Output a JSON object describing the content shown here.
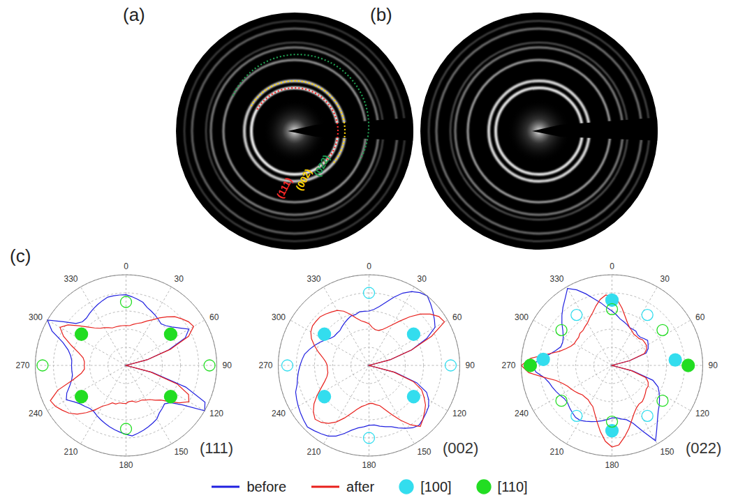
{
  "panels": {
    "a": {
      "label": "(a)",
      "arcs": [
        {
          "label": "(022)",
          "color": "#1f9e50"
        },
        {
          "label": "(002)",
          "color": "#ffd400"
        },
        {
          "label": "(111)",
          "color": "#ff2a2a"
        }
      ]
    },
    "b": {
      "label": "(b)"
    },
    "c": {
      "label": "(c)"
    }
  },
  "legend": {
    "position": "bottom",
    "items": [
      {
        "name": "before",
        "color": "#2020e0",
        "marker": "line"
      },
      {
        "name": "after",
        "color": "#e8201c",
        "marker": "line"
      },
      {
        "name": "[100]",
        "color": "#33ddee",
        "marker": "filled"
      },
      {
        "name": "[110]",
        "color": "#22dd22",
        "marker": "filled"
      }
    ]
  },
  "chart_data": [
    {
      "type": "radar",
      "title": "(111)",
      "grid": true,
      "tick_labels": "x",
      "legend": "bottom",
      "x": [
        0,
        5,
        10,
        15,
        20,
        25,
        30,
        35,
        40,
        45,
        50,
        55,
        60,
        65,
        70,
        75,
        80,
        85,
        90,
        95,
        100,
        105,
        110,
        115,
        120,
        125,
        130,
        135,
        140,
        145,
        150,
        155,
        160,
        165,
        170,
        175,
        180,
        185,
        190,
        195,
        200,
        205,
        210,
        215,
        220,
        225,
        230,
        235,
        240,
        245,
        250,
        255,
        260,
        265,
        270,
        275,
        280,
        285,
        290,
        295,
        300,
        305,
        310,
        315,
        320,
        325,
        330,
        335,
        340,
        345,
        350,
        355
      ],
      "xlim": [
        0,
        360
      ],
      "xticks": [
        0,
        30,
        60,
        90,
        120,
        150,
        180,
        210,
        240,
        270,
        300,
        330
      ],
      "ylim": [
        0,
        5
      ],
      "yticks": [
        1,
        2,
        3,
        4,
        5
      ],
      "series": [
        {
          "name": "before",
          "color": "#2020e0",
          "values": [
            3.9,
            3.8,
            3.7,
            3.6,
            3.4,
            3.3,
            3.2,
            3.1,
            3.0,
            3.1,
            3.3,
            3.6,
            4.0,
            3.6,
            2.5,
            1.2,
            0,
            0,
            0,
            0,
            0,
            1.5,
            3.5,
            4.8,
            5.0,
            3.8,
            3.2,
            3.0,
            3.1,
            3.2,
            3.4,
            3.5,
            3.6,
            3.7,
            3.8,
            3.9,
            3.8,
            3.7,
            3.6,
            3.5,
            3.4,
            3.3,
            3.2,
            3.1,
            3.1,
            3.2,
            3.3,
            3.5,
            3.8,
            3.6,
            3.3,
            3.1,
            3.0,
            3.0,
            3.0,
            3.0,
            3.1,
            3.3,
            3.7,
            4.5,
            5.0,
            4.2,
            3.6,
            3.4,
            3.4,
            3.5,
            3.6,
            3.7,
            3.8,
            3.9,
            3.9,
            3.9
          ]
        },
        {
          "name": "after",
          "color": "#e8201c",
          "values": [
            2.2,
            2.2,
            2.3,
            2.4,
            2.5,
            2.7,
            2.9,
            3.2,
            3.5,
            3.8,
            4.0,
            4.2,
            4.3,
            3.8,
            2.6,
            1.2,
            0,
            0,
            0,
            0,
            0,
            1.4,
            3.0,
            3.8,
            4.0,
            3.6,
            3.1,
            2.7,
            2.5,
            2.3,
            2.2,
            2.1,
            2.1,
            2.1,
            2.0,
            2.0,
            2.1,
            2.1,
            2.1,
            2.2,
            2.2,
            2.4,
            2.6,
            3.0,
            3.4,
            3.8,
            4.1,
            4.3,
            4.5,
            4.6,
            4.0,
            3.0,
            2.5,
            2.3,
            2.3,
            2.3,
            2.4,
            2.7,
            3.2,
            3.8,
            4.2,
            3.9,
            3.4,
            3.0,
            2.7,
            2.5,
            2.4,
            2.3,
            2.2,
            2.2,
            2.2,
            2.2
          ]
        }
      ],
      "markers": [
        {
          "name": "[110]",
          "color": "#22dd22",
          "marker": "filled",
          "points": [
            [
              55,
              3.0
            ],
            [
              125,
              3.0
            ],
            [
              235,
              3.0
            ],
            [
              305,
              3.0
            ]
          ]
        },
        {
          "name": "[110]",
          "color": "#22dd22",
          "marker": "open",
          "points": [
            [
              0,
              3.5
            ],
            [
              90,
              4.6
            ],
            [
              180,
              3.5
            ],
            [
              270,
              4.6
            ]
          ]
        }
      ]
    },
    {
      "type": "radar",
      "title": "(002)",
      "grid": true,
      "tick_labels": "x",
      "legend": "bottom",
      "x": [
        0,
        5,
        10,
        15,
        20,
        25,
        30,
        35,
        40,
        45,
        50,
        55,
        60,
        65,
        70,
        75,
        80,
        85,
        90,
        95,
        100,
        105,
        110,
        115,
        120,
        125,
        130,
        135,
        140,
        145,
        150,
        155,
        160,
        165,
        170,
        175,
        180,
        185,
        190,
        195,
        200,
        205,
        210,
        215,
        220,
        225,
        230,
        235,
        240,
        245,
        250,
        255,
        260,
        265,
        270,
        275,
        280,
        285,
        290,
        295,
        300,
        305,
        310,
        315,
        320,
        325,
        330,
        335,
        340,
        345,
        350,
        355
      ],
      "xlim": [
        0,
        360
      ],
      "xticks": [
        0,
        30,
        60,
        90,
        120,
        150,
        180,
        210,
        240,
        270,
        300,
        330
      ],
      "ylim": [
        0,
        5
      ],
      "yticks": [
        1,
        2,
        3,
        4,
        5
      ],
      "series": [
        {
          "name": "before",
          "color": "#2020e0",
          "values": [
            3.0,
            3.1,
            3.3,
            3.6,
            4.0,
            4.4,
            4.7,
            4.9,
            5.0,
            4.8,
            4.6,
            4.4,
            4.2,
            3.5,
            2.5,
            1.2,
            0,
            0,
            0,
            0,
            0,
            1.5,
            2.8,
            3.5,
            3.8,
            4.0,
            4.1,
            4.2,
            4.3,
            4.2,
            4.0,
            3.8,
            3.6,
            3.5,
            3.4,
            3.3,
            3.3,
            3.4,
            3.5,
            3.7,
            4.0,
            4.3,
            4.5,
            4.6,
            4.7,
            4.8,
            4.7,
            4.6,
            4.5,
            4.4,
            4.3,
            4.1,
            4.0,
            3.9,
            3.8,
            3.7,
            3.6,
            3.4,
            3.2,
            3.0,
            2.8,
            2.6,
            2.5,
            2.5,
            2.5,
            2.6,
            2.7,
            2.8,
            2.9,
            2.9,
            3.0,
            3.0
          ]
        },
        {
          "name": "after",
          "color": "#e8201c",
          "values": [
            2.3,
            2.1,
            2.0,
            2.0,
            2.1,
            2.3,
            2.6,
            3.0,
            3.5,
            4.0,
            4.4,
            4.7,
            4.8,
            3.8,
            2.5,
            1.2,
            0,
            0,
            0,
            0,
            0,
            1.4,
            2.6,
            3.2,
            3.5,
            3.8,
            4.0,
            4.2,
            4.4,
            4.0,
            3.5,
            3.0,
            2.6,
            2.3,
            2.2,
            2.1,
            2.1,
            2.2,
            2.3,
            2.5,
            2.8,
            3.2,
            3.6,
            3.9,
            4.1,
            4.2,
            4.0,
            3.7,
            3.3,
            2.9,
            2.6,
            2.4,
            2.3,
            2.3,
            2.3,
            2.4,
            2.6,
            2.9,
            3.2,
            3.5,
            3.7,
            3.8,
            3.8,
            3.8,
            3.7,
            3.6,
            3.5,
            3.3,
            3.0,
            2.7,
            2.5,
            2.4
          ]
        }
      ],
      "markers": [
        {
          "name": "[100]",
          "color": "#33ddee",
          "marker": "filled",
          "points": [
            [
              55,
              3.0
            ],
            [
              125,
              3.0
            ],
            [
              235,
              3.0
            ],
            [
              305,
              3.0
            ]
          ]
        },
        {
          "name": "[100]",
          "color": "#33ddee",
          "marker": "open",
          "points": [
            [
              0,
              4.0
            ],
            [
              90,
              4.5
            ],
            [
              180,
              4.0
            ],
            [
              270,
              4.5
            ]
          ]
        }
      ]
    },
    {
      "type": "radar",
      "title": "(022)",
      "grid": true,
      "tick_labels": "x",
      "legend": "bottom",
      "x": [
        0,
        5,
        10,
        15,
        20,
        25,
        30,
        35,
        40,
        45,
        50,
        55,
        60,
        65,
        70,
        75,
        80,
        85,
        90,
        95,
        100,
        105,
        110,
        115,
        120,
        125,
        130,
        135,
        140,
        145,
        150,
        155,
        160,
        165,
        170,
        175,
        180,
        185,
        190,
        195,
        200,
        205,
        210,
        215,
        220,
        225,
        230,
        235,
        240,
        245,
        250,
        255,
        260,
        265,
        270,
        275,
        280,
        285,
        290,
        295,
        300,
        305,
        310,
        315,
        320,
        325,
        330,
        335,
        340,
        345,
        350,
        355
      ],
      "xlim": [
        0,
        360
      ],
      "xticks": [
        0,
        30,
        60,
        90,
        120,
        150,
        180,
        210,
        240,
        270,
        300,
        330
      ],
      "ylim": [
        0,
        5
      ],
      "yticks": [
        1,
        2,
        3,
        4,
        5
      ],
      "series": [
        {
          "name": "before",
          "color": "#2020e0",
          "values": [
            3.0,
            2.8,
            2.6,
            2.5,
            2.4,
            2.3,
            2.3,
            2.3,
            2.2,
            2.2,
            2.3,
            2.4,
            2.3,
            2.2,
            2.0,
            1.0,
            0,
            0,
            0,
            0,
            0,
            1.2,
            2.4,
            2.8,
            3.0,
            3.2,
            3.4,
            3.6,
            3.9,
            4.3,
            4.8,
            4.0,
            3.4,
            3.1,
            3.0,
            2.9,
            2.9,
            3.0,
            3.1,
            3.2,
            3.3,
            3.4,
            3.5,
            3.5,
            3.4,
            3.3,
            3.2,
            3.2,
            3.3,
            3.4,
            3.5,
            3.6,
            3.8,
            4.2,
            4.4,
            4.0,
            3.5,
            3.2,
            3.0,
            3.0,
            3.1,
            3.3,
            3.6,
            3.9,
            4.2,
            4.5,
            4.9,
            4.6,
            4.2,
            3.8,
            3.5,
            3.2
          ]
        },
        {
          "name": "after",
          "color": "#e8201c",
          "values": [
            3.8,
            3.6,
            3.2,
            2.8,
            2.5,
            2.3,
            2.2,
            2.1,
            2.1,
            2.1,
            2.2,
            2.2,
            2.2,
            2.1,
            1.9,
            1.0,
            0,
            0,
            0,
            0,
            0,
            1.1,
            2.0,
            2.2,
            2.3,
            2.3,
            2.4,
            2.5,
            2.6,
            2.6,
            2.7,
            2.9,
            3.2,
            3.6,
            4.0,
            4.4,
            4.5,
            4.2,
            3.7,
            3.2,
            2.8,
            2.5,
            2.4,
            2.3,
            2.3,
            2.3,
            2.4,
            2.5,
            2.6,
            2.7,
            2.9,
            3.2,
            3.8,
            4.6,
            5.0,
            4.5,
            3.6,
            3.0,
            2.7,
            2.5,
            2.4,
            2.4,
            2.4,
            2.5,
            2.5,
            2.6,
            2.7,
            2.9,
            3.1,
            3.4,
            3.7,
            3.9
          ]
        }
      ],
      "markers": [
        {
          "name": "[100]",
          "color": "#33ddee",
          "marker": "filled",
          "points": [
            [
              0,
              3.6
            ],
            [
              85,
              3.5
            ],
            [
              180,
              3.6
            ],
            [
              275,
              3.8
            ]
          ]
        },
        {
          "name": "[110]",
          "color": "#22dd22",
          "marker": "filled",
          "points": [
            [
              90,
              4.2
            ],
            [
              270,
              4.5
            ]
          ]
        },
        {
          "name": "[100]",
          "color": "#33ddee",
          "marker": "open",
          "points": [
            [
              35,
              3.4
            ],
            [
              145,
              3.4
            ],
            [
              215,
              3.4
            ],
            [
              325,
              3.4
            ]
          ]
        },
        {
          "name": "[110]",
          "color": "#22dd22",
          "marker": "open",
          "points": [
            [
              55,
              3.4
            ],
            [
              125,
              3.4
            ],
            [
              235,
              3.4
            ],
            [
              305,
              3.4
            ],
            [
              0,
              3.1
            ],
            [
              180,
              3.1
            ]
          ]
        }
      ]
    }
  ]
}
